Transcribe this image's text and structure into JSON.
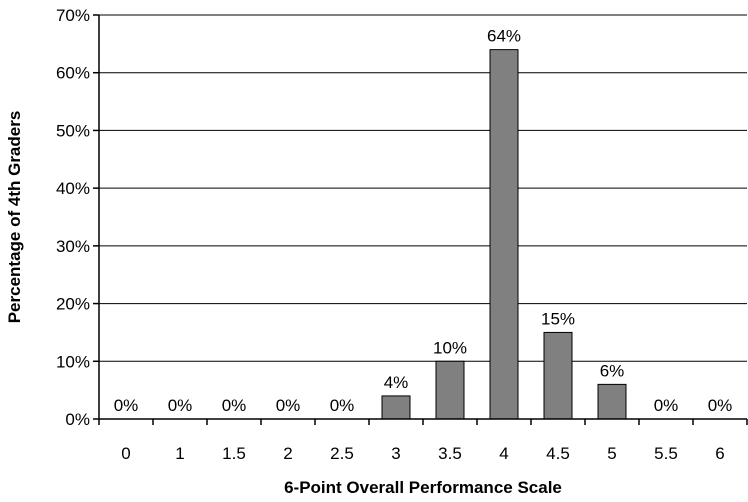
{
  "chart_data": {
    "type": "bar",
    "categories": [
      "0",
      "1",
      "1.5",
      "2",
      "2.5",
      "3",
      "3.5",
      "4",
      "4.5",
      "5",
      "5.5",
      "6"
    ],
    "values": [
      0,
      0,
      0,
      0,
      0,
      4,
      10,
      64,
      15,
      6,
      0,
      0
    ],
    "data_labels": [
      "0%",
      "0%",
      "0%",
      "0%",
      "0%",
      "4%",
      "10%",
      "64%",
      "15%",
      "6%",
      "0%",
      "0%"
    ],
    "xlabel": "6-Point Overall Performance Scale",
    "ylabel": "Percentage of 4th Graders",
    "ylim": [
      0,
      70
    ],
    "y_ticks": [
      0,
      10,
      20,
      30,
      40,
      50,
      60,
      70
    ],
    "y_tick_labels": [
      "0%",
      "10%",
      "20%",
      "30%",
      "40%",
      "50%",
      "60%",
      "70%"
    ],
    "grid": true,
    "legend": "none",
    "colors": {
      "bar_fill": "#808080",
      "bar_stroke": "#000000",
      "grid": "#000000"
    }
  }
}
